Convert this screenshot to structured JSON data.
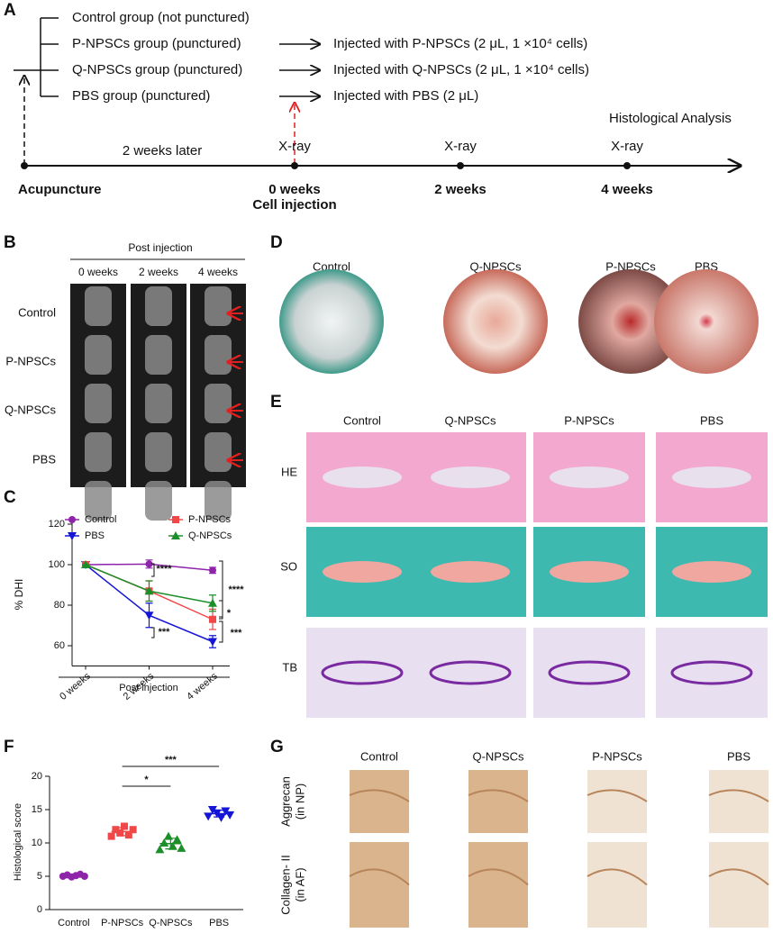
{
  "figure": {
    "panel_a": {
      "label": "A",
      "groups": [
        "Control group (not punctured)",
        "P-NPSCs group (punctured)",
        "Q-NPSCs group (punctured)",
        "PBS group (punctured)"
      ],
      "injections": [
        "Injected with P-NPSCs (2 μL, 1 ×10⁴ cells)",
        "Injected with Q-NPSCs (2 μL, 1 ×10⁴ cells)",
        "Injected with PBS (2 μL)"
      ],
      "analysis": "Histological Analysis",
      "xray": [
        "X-ray",
        "X-ray",
        "X-ray"
      ],
      "interval": "2 weeks later",
      "timepoints": [
        "Acupuncture",
        "0 weeks",
        "2 weeks",
        "4 weeks"
      ],
      "cell_injection": "Cell injection"
    },
    "panel_b": {
      "label": "B",
      "header": "Post injection",
      "columns": [
        "0 weeks",
        "2 weeks",
        "4 weeks"
      ],
      "rows": [
        "Control",
        "P-NPSCs",
        "Q-NPSCs",
        "PBS"
      ]
    },
    "panel_d": {
      "label": "D",
      "columns": [
        "Control",
        "Q-NPSCs",
        "P-NPSCs",
        "PBS"
      ]
    },
    "panel_e": {
      "label": "E",
      "columns": [
        "Control",
        "Q-NPSCs",
        "P-NPSCs",
        "PBS"
      ],
      "rows": [
        "HE",
        "SO",
        "TB"
      ]
    },
    "panel_g": {
      "label": "G",
      "columns": [
        "Control",
        "Q-NPSCs",
        "P-NPSCs",
        "PBS"
      ],
      "rows": [
        [
          "Aggrecan",
          "(in NP)"
        ],
        [
          "Collagen- II",
          "(in AF)"
        ]
      ]
    }
  },
  "chart_data": [
    {
      "type": "line",
      "panel_label": "C",
      "categories": [
        "0 weeks",
        "2 weeks",
        "4 weeks"
      ],
      "series": [
        {
          "name": "Control",
          "color": "#8e24aa",
          "marker": "circle",
          "values": [
            100,
            100.3,
            97.2
          ],
          "errors": [
            0,
            2,
            1.5
          ]
        },
        {
          "name": "PBS",
          "color": "#1515d6",
          "marker": "triangle-down",
          "values": [
            100,
            75,
            62
          ],
          "errors": [
            0,
            6,
            3
          ]
        },
        {
          "name": "P-NPSCs",
          "color": "#f04848",
          "marker": "square",
          "values": [
            100,
            87,
            73
          ],
          "errors": [
            0,
            5,
            5
          ]
        },
        {
          "name": "Q-NPSCs",
          "color": "#1d8f2a",
          "marker": "triangle-up",
          "values": [
            100,
            87,
            81
          ],
          "errors": [
            0,
            5,
            4
          ]
        }
      ],
      "ylim": [
        50,
        120
      ],
      "yticks": [
        60,
        80,
        100,
        120
      ],
      "ylabel": "% DHI",
      "xlabel": "Post injection",
      "annotations": [
        "****",
        "***",
        "****",
        "*",
        "***"
      ]
    },
    {
      "type": "dot",
      "panel_label": "F",
      "categories": [
        "Control",
        "P-NPSCs",
        "Q-NPSCs",
        "PBS"
      ],
      "colors": [
        "#8e24aa",
        "#f04848",
        "#1d8f2a",
        "#1515d6"
      ],
      "points": [
        [
          5.0,
          5.2,
          4.9,
          5.1,
          5.3,
          5.0
        ],
        [
          11.0,
          12.0,
          11.5,
          12.5,
          11.2,
          12.0
        ],
        [
          9.0,
          10.0,
          11.0,
          9.5,
          10.5,
          9.2
        ],
        [
          14.0,
          15.0,
          14.5,
          13.8,
          14.8,
          14.2
        ]
      ],
      "means": [
        5.1,
        11.7,
        9.9,
        14.4
      ],
      "sd": [
        0.2,
        0.6,
        0.8,
        0.5
      ],
      "ylim": [
        0,
        20
      ],
      "yticks": [
        0,
        5,
        10,
        15,
        20
      ],
      "ylabel": "Histological score",
      "annotations": [
        "*",
        "***"
      ]
    }
  ]
}
